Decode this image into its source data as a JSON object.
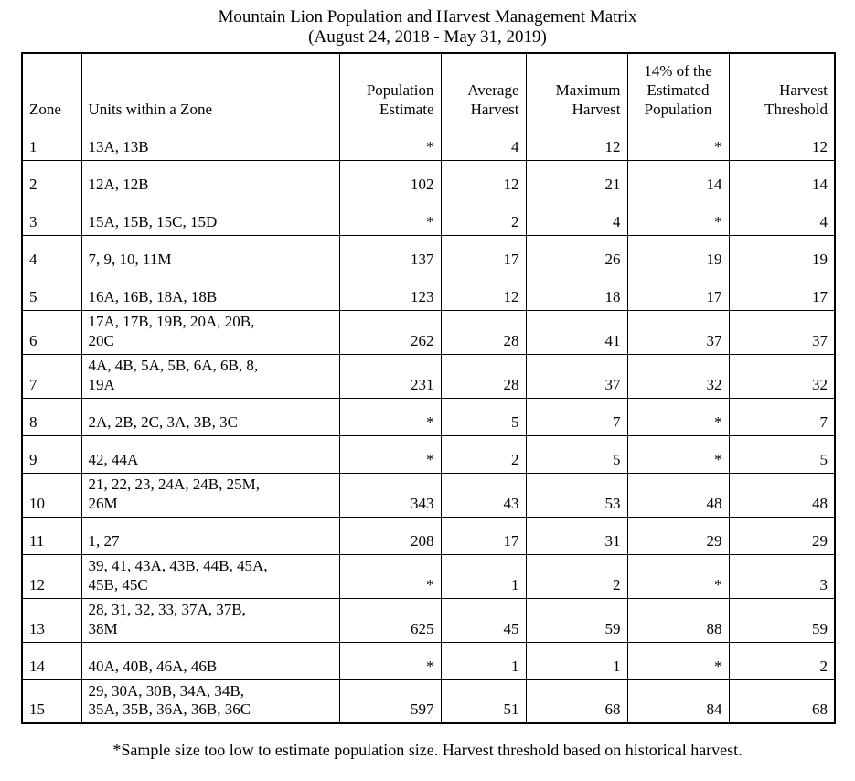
{
  "title": "Mountain Lion Population and Harvest Management Matrix",
  "subtitle": "(August 24, 2018 - May 31, 2019)",
  "footnote": "*Sample size too low to estimate population size. Harvest threshold based on historical harvest.",
  "colors": {
    "text": "#000000",
    "border": "#000000",
    "background": "#ffffff"
  },
  "table": {
    "header": {
      "zone": "Zone",
      "units": "Units within a Zone",
      "population_estimate": "Population Estimate",
      "average_harvest": "Average Harvest",
      "maximum_harvest": "Maximum Harvest",
      "pct14": "14% of the Estimated Population",
      "harvest_threshold": "Harvest Threshold"
    },
    "rows": [
      {
        "zone": "1",
        "units_lines": [
          "13A, 13B"
        ],
        "population_estimate": "*",
        "average_harvest": "4",
        "maximum_harvest": "12",
        "pct14": "*",
        "harvest_threshold": "12"
      },
      {
        "zone": "2",
        "units_lines": [
          "12A, 12B"
        ],
        "population_estimate": "102",
        "average_harvest": "12",
        "maximum_harvest": "21",
        "pct14": "14",
        "harvest_threshold": "14"
      },
      {
        "zone": "3",
        "units_lines": [
          "15A, 15B, 15C, 15D"
        ],
        "population_estimate": "*",
        "average_harvest": "2",
        "maximum_harvest": "4",
        "pct14": "*",
        "harvest_threshold": "4"
      },
      {
        "zone": "4",
        "units_lines": [
          "7, 9, 10, 11M"
        ],
        "population_estimate": "137",
        "average_harvest": "17",
        "maximum_harvest": "26",
        "pct14": "19",
        "harvest_threshold": "19"
      },
      {
        "zone": "5",
        "units_lines": [
          "16A, 16B, 18A, 18B"
        ],
        "population_estimate": "123",
        "average_harvest": "12",
        "maximum_harvest": "18",
        "pct14": "17",
        "harvest_threshold": "17"
      },
      {
        "zone": "6",
        "units_lines": [
          "17A, 17B, 19B, 20A, 20B,",
          "20C"
        ],
        "population_estimate": "262",
        "average_harvest": "28",
        "maximum_harvest": "41",
        "pct14": "37",
        "harvest_threshold": "37"
      },
      {
        "zone": "7",
        "units_lines": [
          "4A, 4B, 5A, 5B, 6A, 6B, 8,",
          "19A"
        ],
        "population_estimate": "231",
        "average_harvest": "28",
        "maximum_harvest": "37",
        "pct14": "32",
        "harvest_threshold": "32"
      },
      {
        "zone": "8",
        "units_lines": [
          "2A, 2B, 2C, 3A, 3B, 3C"
        ],
        "population_estimate": "*",
        "average_harvest": "5",
        "maximum_harvest": "7",
        "pct14": "*",
        "harvest_threshold": "7"
      },
      {
        "zone": "9",
        "units_lines": [
          "42, 44A"
        ],
        "population_estimate": "*",
        "average_harvest": "2",
        "maximum_harvest": "5",
        "pct14": "*",
        "harvest_threshold": "5"
      },
      {
        "zone": "10",
        "units_lines": [
          "21, 22, 23, 24A, 24B, 25M,",
          "26M"
        ],
        "population_estimate": "343",
        "average_harvest": "43",
        "maximum_harvest": "53",
        "pct14": "48",
        "harvest_threshold": "48"
      },
      {
        "zone": "11",
        "units_lines": [
          "1, 27"
        ],
        "population_estimate": "208",
        "average_harvest": "17",
        "maximum_harvest": "31",
        "pct14": "29",
        "harvest_threshold": "29"
      },
      {
        "zone": "12",
        "units_lines": [
          "39, 41, 43A, 43B, 44B, 45A,",
          "45B, 45C"
        ],
        "population_estimate": "*",
        "average_harvest": "1",
        "maximum_harvest": "2",
        "pct14": "*",
        "harvest_threshold": "3"
      },
      {
        "zone": "13",
        "units_lines": [
          "28, 31, 32, 33, 37A, 37B,",
          "38M"
        ],
        "population_estimate": "625",
        "average_harvest": "45",
        "maximum_harvest": "59",
        "pct14": "88",
        "harvest_threshold": "59"
      },
      {
        "zone": "14",
        "units_lines": [
          "40A, 40B, 46A, 46B"
        ],
        "population_estimate": "*",
        "average_harvest": "1",
        "maximum_harvest": "1",
        "pct14": "*",
        "harvest_threshold": "2"
      },
      {
        "zone": "15",
        "units_lines": [
          "29, 30A, 30B, 34A, 34B,",
          "35A, 35B, 36A, 36B, 36C"
        ],
        "population_estimate": "597",
        "average_harvest": "51",
        "maximum_harvest": "68",
        "pct14": "84",
        "harvest_threshold": "68"
      }
    ]
  }
}
